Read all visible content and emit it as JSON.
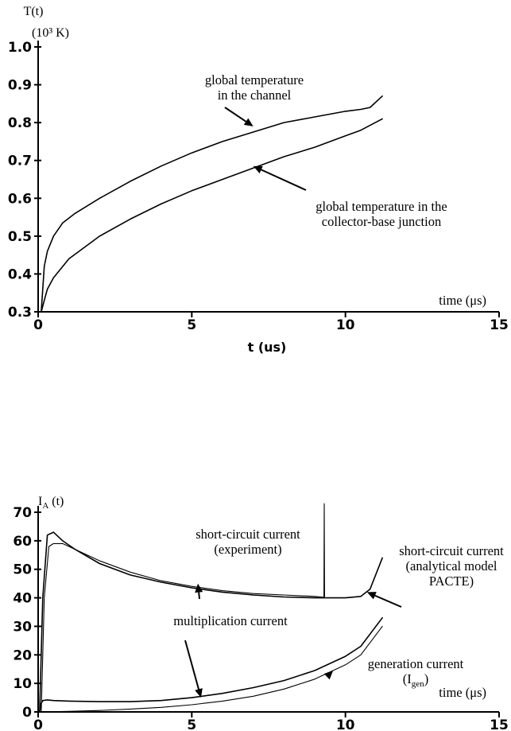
{
  "chart_data": [
    {
      "type": "line",
      "ylabel": "T(t)",
      "yunit": "(10³ K)",
      "xlabel": "t (us)",
      "xaxis_annotation": "time (μs)",
      "xlim": [
        0,
        15
      ],
      "ylim": [
        0.3,
        1.0
      ],
      "xticks": [
        "0",
        "5",
        "10",
        "15"
      ],
      "yticks": [
        "0.3",
        "0.4",
        "0.5",
        "0.6",
        "0.7",
        "0.8",
        "0.9",
        "1.0"
      ],
      "grid": false,
      "series": [
        {
          "x": [
            0.1,
            0.2,
            0.3,
            0.5,
            0.8,
            1.2,
            2,
            3,
            4,
            5,
            6,
            7,
            8,
            9,
            10,
            10.5,
            10.8,
            11.2
          ],
          "y": [
            0.3,
            0.42,
            0.46,
            0.5,
            0.535,
            0.56,
            0.6,
            0.645,
            0.685,
            0.72,
            0.75,
            0.775,
            0.8,
            0.815,
            0.83,
            0.835,
            0.84,
            0.87
          ]
        },
        {
          "x": [
            0.1,
            0.2,
            0.3,
            0.5,
            1,
            2,
            3,
            4,
            5,
            6,
            7,
            8,
            9,
            10,
            10.5,
            11.2
          ],
          "y": [
            0.3,
            0.33,
            0.36,
            0.39,
            0.44,
            0.5,
            0.545,
            0.585,
            0.62,
            0.65,
            0.68,
            0.71,
            0.735,
            0.765,
            0.78,
            0.81
          ]
        }
      ],
      "annotations": [
        {
          "lines": [
            "global temperature",
            "in the channel"
          ],
          "target": [
            7,
            0.79
          ]
        },
        {
          "lines": [
            "global temperature in  the",
            "collector-base junction"
          ],
          "target": [
            7,
            0.685
          ]
        }
      ]
    },
    {
      "type": "line",
      "ylabel": "I",
      "ylabel_sub": "A",
      "ylabel_suffix": " (t)",
      "xaxis_annotation": "time (μs)",
      "xlim": [
        0,
        15
      ],
      "ylim": [
        0,
        70
      ],
      "xticks": [
        "0",
        "5",
        "10",
        "15"
      ],
      "yticks": [
        "0",
        "10",
        "20",
        "30",
        "40",
        "50",
        "60",
        "70"
      ],
      "grid": false,
      "series": [
        {
          "x": [
            0.1,
            0.2,
            0.35,
            0.5,
            0.8,
            1.2,
            2,
            3,
            4,
            5,
            6,
            7,
            8,
            9,
            9.3,
            9.31,
            9.32
          ],
          "y": [
            0,
            40,
            58,
            59,
            59,
            57,
            53,
            49,
            46,
            44,
            42.5,
            41.5,
            41,
            40.5,
            40.2,
            73,
            40.2
          ]
        },
        {
          "x": [
            0.05,
            0.15,
            0.3,
            0.5,
            0.8,
            1.2,
            2,
            3,
            4,
            5,
            6,
            7,
            8,
            9,
            10,
            10.5,
            10.8,
            11.2
          ],
          "y": [
            0,
            40,
            62,
            63,
            60,
            57,
            52,
            48,
            45.5,
            43.5,
            42,
            41,
            40.3,
            40,
            40,
            40.5,
            43,
            54
          ]
        },
        {
          "x": [
            0.05,
            0.1,
            0.15,
            0.3,
            0.5,
            1,
            2,
            3,
            4,
            5,
            6,
            7,
            8,
            9,
            10,
            10.5,
            11.2
          ],
          "y": [
            0,
            3,
            4,
            4.2,
            4,
            3.8,
            3.6,
            3.6,
            4,
            5,
            6.5,
            8.5,
            11,
            14.5,
            19.5,
            23,
            33
          ]
        },
        {
          "x": [
            0,
            1,
            2,
            3,
            4,
            5,
            6,
            7,
            8,
            9,
            10,
            10.5,
            11.2
          ],
          "y": [
            0,
            0.2,
            0.5,
            1,
            1.6,
            2.5,
            3.8,
            5.5,
            8,
            11.5,
            16.5,
            20,
            30
          ]
        }
      ],
      "annotations": [
        {
          "lines": [
            "short-circuit current",
            "(experiment)"
          ],
          "target": [
            5.2,
            45
          ]
        },
        {
          "lines": [
            "short-circuit current",
            "(analytical model",
            "PACTE)"
          ],
          "target": [
            10.7,
            42
          ]
        },
        {
          "lines": [
            "multiplication current"
          ],
          "target": [
            5.3,
            5
          ]
        },
        {
          "lines": [
            "generation current",
            "(I"
          ],
          "sub": "gen",
          "suffix": ")",
          "target": [
            9.6,
            14.5
          ]
        }
      ]
    }
  ]
}
